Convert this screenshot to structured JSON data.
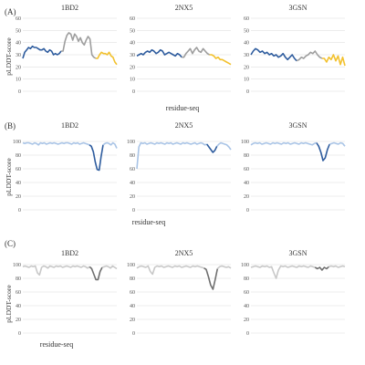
{
  "figure": {
    "panels": [
      {
        "label": "(A)",
        "ylabel": "pLDDT-score",
        "xlabel": "residue-seq"
      },
      {
        "label": "(B)",
        "ylabel": "pLDDT-score",
        "xlabel": "residue-seq"
      },
      {
        "label": "(C)",
        "ylabel": "pLDDT-score",
        "xlabel": "residue-seq"
      }
    ]
  },
  "chart_data": [
    {
      "panel": "A",
      "title": "1BD2",
      "type": "line",
      "ylim": [
        0,
        60
      ],
      "yticks": [
        0,
        10,
        20,
        30,
        40,
        50,
        60
      ],
      "grid": true,
      "segments": [
        {
          "color": "#2e5c9e",
          "values": [
            27,
            32,
            34,
            36,
            35,
            37,
            36,
            36,
            35,
            34,
            34,
            35,
            33,
            32,
            34,
            33,
            30,
            31,
            30,
            31,
            33
          ]
        },
        {
          "color": "#9e9e9e",
          "values": [
            33,
            41,
            46,
            48,
            47,
            42,
            47,
            45,
            41,
            44,
            40,
            38,
            42,
            45,
            43,
            30,
            28,
            27
          ]
        },
        {
          "color": "#f2c12e",
          "values": [
            27,
            30,
            32,
            31,
            31,
            30,
            32,
            29,
            28,
            24,
            22
          ]
        }
      ]
    },
    {
      "panel": "A",
      "title": "2NX5",
      "type": "line",
      "ylim": [
        0,
        60
      ],
      "yticks": [
        0,
        10,
        20,
        30,
        40,
        50,
        60
      ],
      "grid": true,
      "segments": [
        {
          "color": "#2e5c9e",
          "values": [
            29,
            30,
            31,
            30,
            32,
            33,
            32,
            34,
            33,
            31,
            32,
            34,
            33,
            30,
            31,
            32,
            31,
            30,
            29,
            31,
            30,
            28
          ]
        },
        {
          "color": "#9e9e9e",
          "values": [
            28,
            31,
            33,
            35,
            31,
            34,
            36,
            33,
            32,
            35,
            33,
            31,
            30
          ]
        },
        {
          "color": "#f2c12e",
          "values": [
            30,
            29,
            27,
            28,
            26,
            26,
            25,
            24,
            23,
            22
          ]
        }
      ]
    },
    {
      "panel": "A",
      "title": "3GSN",
      "type": "line",
      "ylim": [
        0,
        60
      ],
      "yticks": [
        0,
        10,
        20,
        30,
        40,
        50,
        60
      ],
      "grid": true,
      "segments": [
        {
          "color": "#2e5c9e",
          "values": [
            30,
            33,
            35,
            34,
            32,
            33,
            31,
            32,
            30,
            31,
            29,
            30,
            28,
            29,
            31,
            28,
            26,
            28,
            30,
            27,
            25
          ]
        },
        {
          "color": "#9e9e9e",
          "values": [
            26,
            28,
            27,
            29,
            30,
            32,
            31,
            33,
            30,
            28,
            27
          ]
        },
        {
          "color": "#f2c12e",
          "values": [
            27,
            24,
            28,
            26,
            30,
            25,
            29,
            22,
            28,
            21
          ]
        }
      ]
    },
    {
      "panel": "B",
      "title": "1BD2",
      "type": "line",
      "ylim": [
        0,
        100
      ],
      "yticks": [
        0,
        20,
        40,
        60,
        80,
        100
      ],
      "grid": true,
      "segments": [
        {
          "color": "#a9c4e6",
          "values": [
            98,
            97,
            98,
            98,
            97,
            96,
            98,
            97,
            95,
            98,
            97,
            98,
            96,
            97,
            98,
            97,
            98,
            97,
            96,
            97,
            98,
            97,
            98,
            98,
            97,
            96,
            98,
            97,
            98,
            96,
            97,
            98,
            97,
            96,
            95
          ]
        },
        {
          "color": "#2e5c9e",
          "values": [
            93,
            85,
            70,
            59,
            58,
            78,
            95
          ]
        },
        {
          "color": "#a9c4e6",
          "values": [
            97,
            98,
            97,
            95,
            98,
            96,
            90
          ]
        }
      ]
    },
    {
      "panel": "B",
      "title": "2NX5",
      "type": "line",
      "ylim": [
        0,
        100
      ],
      "yticks": [
        0,
        20,
        40,
        60,
        80,
        100
      ],
      "grid": true,
      "segments": [
        {
          "color": "#a9c4e6",
          "values": [
            60,
            92,
            98,
            97,
            98,
            96,
            97,
            98,
            97,
            96,
            98,
            97,
            98,
            97,
            96,
            98,
            97,
            98,
            96,
            97,
            98,
            97,
            96,
            98,
            97,
            98,
            97,
            96,
            97,
            98,
            96,
            97,
            98,
            97,
            95,
            96
          ]
        },
        {
          "color": "#2e5c9e",
          "values": [
            92,
            88,
            84,
            87,
            93
          ]
        },
        {
          "color": "#a9c4e6",
          "values": [
            96,
            98,
            97,
            96,
            95,
            92,
            88
          ]
        }
      ]
    },
    {
      "panel": "B",
      "title": "3GSN",
      "type": "line",
      "ylim": [
        0,
        100
      ],
      "yticks": [
        0,
        20,
        40,
        60,
        80,
        100
      ],
      "grid": true,
      "segments": [
        {
          "color": "#a9c4e6",
          "values": [
            95,
            97,
            98,
            97,
            98,
            96,
            97,
            98,
            97,
            96,
            98,
            97,
            98,
            97,
            96,
            98,
            97,
            98,
            96,
            97,
            98,
            97,
            96,
            98,
            97,
            98,
            97,
            96,
            95,
            97,
            98
          ]
        },
        {
          "color": "#2e5c9e",
          "values": [
            93,
            84,
            72,
            76,
            88,
            96
          ]
        },
        {
          "color": "#a9c4e6",
          "values": [
            97,
            98,
            97,
            96,
            98,
            97,
            93
          ]
        }
      ]
    },
    {
      "panel": "C",
      "title": "1BD2",
      "type": "line",
      "ylim": [
        0,
        100
      ],
      "yticks": [
        0,
        20,
        40,
        60,
        80,
        100
      ],
      "grid": true,
      "segments": [
        {
          "color": "#c8c8c8",
          "values": [
            97,
            98,
            97,
            96,
            98,
            97,
            98,
            88,
            85,
            96,
            98,
            97,
            95,
            98,
            97,
            96,
            98,
            97,
            98,
            96,
            97,
            98,
            97,
            96,
            98,
            97,
            98,
            97,
            96,
            98,
            97,
            95,
            97
          ]
        },
        {
          "color": "#6f6f6f",
          "values": [
            94,
            86,
            78,
            78,
            90,
            96
          ]
        },
        {
          "color": "#c8c8c8",
          "values": [
            97,
            98,
            97,
            95,
            98,
            96,
            94
          ]
        }
      ]
    },
    {
      "panel": "C",
      "title": "2NX5",
      "type": "line",
      "ylim": [
        0,
        100
      ],
      "yticks": [
        0,
        20,
        40,
        60,
        80,
        100
      ],
      "grid": true,
      "segments": [
        {
          "color": "#c8c8c8",
          "values": [
            95,
            97,
            98,
            97,
            96,
            98,
            90,
            86,
            96,
            98,
            97,
            98,
            96,
            97,
            98,
            97,
            96,
            98,
            97,
            98,
            96,
            97,
            98,
            97,
            96,
            98,
            97,
            98,
            97,
            96,
            95
          ]
        },
        {
          "color": "#6f6f6f",
          "values": [
            93,
            82,
            70,
            64,
            78,
            94
          ]
        },
        {
          "color": "#c8c8c8",
          "values": [
            97,
            98,
            97,
            96,
            97,
            95
          ]
        }
      ]
    },
    {
      "panel": "C",
      "title": "3GSN",
      "type": "line",
      "ylim": [
        0,
        100
      ],
      "yticks": [
        0,
        20,
        40,
        60,
        80,
        100
      ],
      "grid": true,
      "segments": [
        {
          "color": "#c8c8c8",
          "values": [
            96,
            97,
            98,
            97,
            96,
            98,
            97,
            98,
            96,
            97,
            88,
            80,
            92,
            98,
            97,
            98,
            96,
            97,
            98,
            97,
            96,
            98,
            97,
            98,
            97,
            96,
            98,
            97,
            96
          ]
        },
        {
          "color": "#6f6f6f",
          "values": [
            94,
            96,
            92,
            96,
            94,
            97
          ]
        },
        {
          "color": "#c8c8c8",
          "values": [
            98,
            97,
            98,
            96,
            97,
            98,
            97
          ]
        }
      ]
    }
  ]
}
